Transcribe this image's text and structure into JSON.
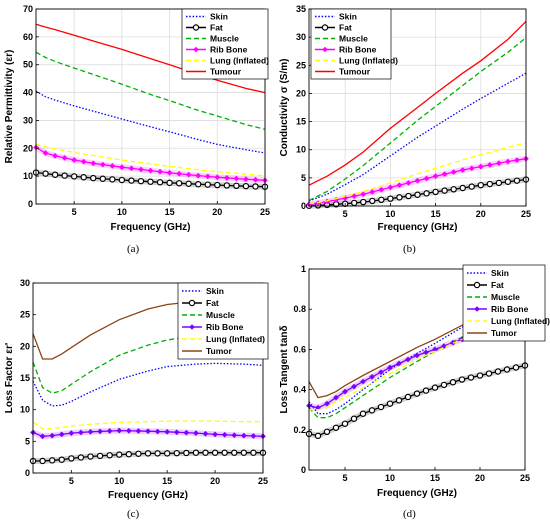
{
  "figure": {
    "panel_labels": [
      "(a)",
      "(b)",
      "(c)",
      "(d)"
    ]
  },
  "chart_data": [
    {
      "type": "line",
      "panel": "(a)",
      "xlabel": "Frequency (GHz)",
      "ylabel": "Relative Permittivity (εr)",
      "xlim": [
        1,
        25
      ],
      "ylim": [
        0,
        70
      ],
      "xticks": [
        5,
        10,
        15,
        20,
        25
      ],
      "yticks": [
        0,
        10,
        20,
        30,
        40,
        50,
        60,
        70
      ],
      "grid": true,
      "legend_position": "top-right",
      "x": [
        1,
        2,
        3,
        5,
        7,
        10,
        13,
        15,
        18,
        20,
        23,
        25
      ],
      "series": [
        {
          "name": "Skin",
          "color": "#0000ff",
          "dash": "1.5,1.8",
          "marker": "none",
          "values": [
            40.5,
            38.5,
            37.3,
            35.2,
            33.3,
            30.5,
            27.7,
            25.9,
            23.1,
            21.4,
            19.5,
            18.3
          ]
        },
        {
          "name": "Fat",
          "color": "#000000",
          "dash": "",
          "marker": "circle-open",
          "values": [
            11.3,
            10.9,
            10.5,
            9.9,
            9.3,
            8.6,
            8.0,
            7.6,
            7.1,
            6.8,
            6.4,
            6.2
          ]
        },
        {
          "name": "Muscle",
          "color": "#00b000",
          "dash": "5,3",
          "marker": "none",
          "values": [
            54.5,
            52.6,
            51.2,
            48.8,
            46.5,
            43.0,
            39.3,
            37.1,
            33.6,
            31.6,
            28.5,
            26.8
          ]
        },
        {
          "name": "Rib Bone",
          "color": "#ff00ff",
          "dash": "",
          "marker": "diamond",
          "values": [
            20.3,
            18.3,
            17.3,
            15.8,
            14.6,
            13.2,
            12.0,
            11.2,
            10.2,
            9.6,
            8.9,
            8.5
          ]
        },
        {
          "name": "Lung (Inflated)",
          "color": "#ffff00",
          "dash": "5,3",
          "marker": "none",
          "values": [
            21.5,
            20.5,
            19.8,
            18.5,
            17.4,
            15.8,
            14.4,
            13.5,
            12.3,
            11.6,
            10.7,
            10.1
          ]
        },
        {
          "name": "Tumour",
          "color": "#ff0000",
          "dash": "",
          "marker": "none",
          "values": [
            64.5,
            63.5,
            62.6,
            60.6,
            58.5,
            55.5,
            52.2,
            50.0,
            46.6,
            44.4,
            41.5,
            40.0
          ]
        }
      ]
    },
    {
      "type": "line",
      "panel": "(b)",
      "xlabel": "Frequency (GHz)",
      "ylabel": "Conductivity σ (S/m)",
      "xlim": [
        1,
        25
      ],
      "ylim": [
        0,
        35
      ],
      "xticks": [
        5,
        10,
        15,
        20,
        25
      ],
      "yticks": [
        0,
        5,
        10,
        15,
        20,
        25,
        30,
        35
      ],
      "grid": true,
      "legend_position": "top-left",
      "x": [
        1,
        2,
        3,
        5,
        7,
        10,
        13,
        15,
        18,
        20,
        23,
        25
      ],
      "series": [
        {
          "name": "Skin",
          "color": "#0000ff",
          "dash": "1.5,1.8",
          "marker": "none",
          "values": [
            0.9,
            1.5,
            2.1,
            3.8,
            5.6,
            8.9,
            12.2,
            14.2,
            17.2,
            19.1,
            21.8,
            23.6
          ]
        },
        {
          "name": "Fat",
          "color": "#000000",
          "dash": "",
          "marker": "circle-open",
          "values": [
            0.05,
            0.1,
            0.2,
            0.4,
            0.7,
            1.3,
            2.0,
            2.5,
            3.2,
            3.7,
            4.3,
            4.7
          ]
        },
        {
          "name": "Muscle",
          "color": "#00b000",
          "dash": "5,3",
          "marker": "none",
          "values": [
            1.0,
            1.8,
            2.6,
            4.8,
            7.2,
            11.2,
            15.2,
            17.7,
            21.4,
            23.9,
            27.3,
            29.9
          ]
        },
        {
          "name": "Rib Bone",
          "color": "#ff00ff",
          "dash": "",
          "marker": "diamond",
          "values": [
            0.3,
            0.5,
            0.8,
            1.4,
            2.1,
            3.3,
            4.5,
            5.3,
            6.4,
            7.0,
            7.9,
            8.4
          ]
        },
        {
          "name": "Lung (Inflated)",
          "color": "#ffff00",
          "dash": "5,3",
          "marker": "none",
          "values": [
            0.4,
            0.6,
            0.9,
            1.7,
            2.6,
            4.1,
            5.7,
            6.7,
            8.2,
            9.1,
            10.4,
            11.2
          ]
        },
        {
          "name": "Tumour",
          "color": "#ff0000",
          "dash": "",
          "marker": "none",
          "values": [
            3.7,
            4.5,
            5.3,
            7.3,
            9.6,
            13.8,
            17.5,
            20.0,
            23.6,
            25.8,
            29.6,
            32.8
          ]
        }
      ]
    },
    {
      "type": "line",
      "panel": "(c)",
      "xlabel": "Frequency (GHz)",
      "ylabel": "Loss Factor εr'",
      "xlim": [
        1,
        25
      ],
      "ylim": [
        0,
        30
      ],
      "xticks": [
        5,
        10,
        15,
        20,
        25
      ],
      "yticks": [
        0,
        5,
        10,
        15,
        20,
        25,
        30
      ],
      "grid": false,
      "legend_position": "top-right",
      "x": [
        1,
        2,
        3,
        4,
        5,
        7,
        10,
        13,
        15,
        18,
        20,
        23,
        25
      ],
      "series": [
        {
          "name": "Skin",
          "color": "#0000ff",
          "dash": "1.5,1.8",
          "marker": "none",
          "values": [
            14.5,
            11.5,
            10.6,
            10.7,
            11.3,
            12.8,
            14.8,
            16.1,
            16.8,
            17.2,
            17.3,
            17.2,
            17.0
          ]
        },
        {
          "name": "Fat",
          "color": "#000000",
          "dash": "",
          "marker": "circle-open",
          "values": [
            1.9,
            1.9,
            2.0,
            2.1,
            2.3,
            2.6,
            2.9,
            3.1,
            3.1,
            3.2,
            3.2,
            3.2,
            3.2
          ]
        },
        {
          "name": "Muscle",
          "color": "#00b000",
          "dash": "5,3",
          "marker": "none",
          "values": [
            17.5,
            13.5,
            12.6,
            13.0,
            14.0,
            16.0,
            18.6,
            20.2,
            21.0,
            21.7,
            21.9,
            21.9,
            21.8
          ]
        },
        {
          "name": "Rib Bone",
          "color": "#8000ff",
          "dash": "",
          "marker": "diamond",
          "values": [
            6.4,
            5.8,
            5.9,
            6.1,
            6.3,
            6.5,
            6.7,
            6.6,
            6.5,
            6.3,
            6.1,
            5.9,
            5.8
          ]
        },
        {
          "name": "Lung (Inflated)",
          "color": "#ffff00",
          "dash": "5,3",
          "marker": "none",
          "values": [
            8.0,
            7.0,
            7.0,
            7.2,
            7.4,
            7.7,
            8.0,
            8.1,
            8.2,
            8.2,
            8.2,
            8.1,
            8.1
          ]
        },
        {
          "name": "Tumor",
          "color": "#8b4513",
          "dash": "",
          "marker": "none",
          "values": [
            22.0,
            18.0,
            18.0,
            18.8,
            19.8,
            21.8,
            24.2,
            25.9,
            26.6,
            27.1,
            27.2,
            27.0,
            26.8
          ]
        }
      ]
    },
    {
      "type": "line",
      "panel": "(d)",
      "xlabel": "Frequency (GHz)",
      "ylabel": "Loss Tangent tanδ",
      "xlim": [
        1,
        25
      ],
      "ylim": [
        0,
        1
      ],
      "xticks": [
        5,
        10,
        15,
        20,
        25
      ],
      "yticks": [
        0,
        0.2,
        0.4,
        0.6,
        0.8,
        1
      ],
      "grid": false,
      "legend_position": "top-right",
      "x": [
        1,
        2,
        3,
        4,
        5,
        7,
        10,
        13,
        15,
        18,
        20,
        23,
        25
      ],
      "series": [
        {
          "name": "Skin",
          "color": "#0000ff",
          "dash": "1.5,1.8",
          "marker": "none",
          "values": [
            0.34,
            0.28,
            0.28,
            0.3,
            0.33,
            0.4,
            0.5,
            0.58,
            0.63,
            0.71,
            0.75,
            0.8,
            0.82
          ]
        },
        {
          "name": "Fat",
          "color": "#000000",
          "dash": "",
          "marker": "circle-open",
          "values": [
            0.18,
            0.17,
            0.19,
            0.21,
            0.23,
            0.28,
            0.33,
            0.38,
            0.41,
            0.45,
            0.47,
            0.5,
            0.52
          ]
        },
        {
          "name": "Muscle",
          "color": "#00b000",
          "dash": "5,3",
          "marker": "none",
          "values": [
            0.31,
            0.26,
            0.26,
            0.28,
            0.31,
            0.37,
            0.46,
            0.54,
            0.59,
            0.66,
            0.7,
            0.76,
            0.8
          ]
        },
        {
          "name": "Rib Bone",
          "color": "#8000ff",
          "dash": "",
          "marker": "diamond",
          "values": [
            0.32,
            0.31,
            0.33,
            0.36,
            0.39,
            0.44,
            0.51,
            0.57,
            0.6,
            0.65,
            0.68,
            0.72,
            0.74
          ]
        },
        {
          "name": "Lung (Inflated)",
          "color": "#ffff00",
          "dash": "5,3",
          "marker": "none",
          "values": [
            0.3,
            0.3,
            0.31,
            0.34,
            0.36,
            0.41,
            0.48,
            0.55,
            0.59,
            0.65,
            0.69,
            0.74,
            0.77
          ]
        },
        {
          "name": "Tumor",
          "color": "#8b4513",
          "dash": "",
          "marker": "none",
          "values": [
            0.44,
            0.36,
            0.37,
            0.39,
            0.42,
            0.47,
            0.54,
            0.61,
            0.65,
            0.72,
            0.76,
            0.82,
            0.86
          ]
        }
      ]
    }
  ]
}
